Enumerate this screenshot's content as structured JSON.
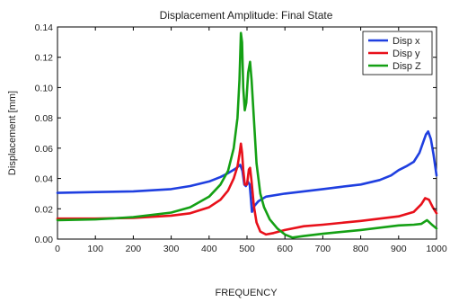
{
  "chart_data": {
    "type": "line",
    "title": "Displacement Amplitude:  Final State",
    "xlabel": "FREQUENCY",
    "ylabel": "Displacement [mm]",
    "xlim": [
      0,
      1000
    ],
    "ylim": [
      0,
      0.14
    ],
    "xticks": [
      0,
      100,
      200,
      300,
      400,
      500,
      600,
      700,
      800,
      900,
      1000
    ],
    "yticks": [
      0.0,
      0.02,
      0.04,
      0.06,
      0.08,
      0.1,
      0.12,
      0.14
    ],
    "grid": false,
    "legend_position": "top-right",
    "series": [
      {
        "name": "Disp x",
        "color": "#1f3fe0",
        "x": [
          0,
          100,
          200,
          300,
          350,
          400,
          430,
          450,
          470,
          482,
          488,
          493,
          497,
          502,
          507,
          513,
          520,
          530,
          550,
          600,
          650,
          700,
          750,
          800,
          850,
          880,
          900,
          920,
          940,
          955,
          965,
          972,
          978,
          985,
          992,
          1000
        ],
        "y": [
          0.0305,
          0.031,
          0.0315,
          0.033,
          0.035,
          0.038,
          0.041,
          0.0435,
          0.0465,
          0.049,
          0.045,
          0.036,
          0.035,
          0.038,
          0.036,
          0.018,
          0.022,
          0.025,
          0.028,
          0.03,
          0.0315,
          0.033,
          0.0345,
          0.036,
          0.039,
          0.042,
          0.0455,
          0.048,
          0.051,
          0.057,
          0.064,
          0.069,
          0.071,
          0.066,
          0.056,
          0.042
        ]
      },
      {
        "name": "Disp y",
        "color": "#e8101a",
        "x": [
          0,
          100,
          200,
          300,
          350,
          400,
          430,
          450,
          465,
          475,
          480,
          484,
          487,
          490,
          494,
          500,
          505,
          508,
          512,
          518,
          525,
          535,
          550,
          570,
          600,
          650,
          700,
          800,
          900,
          940,
          960,
          970,
          980,
          990,
          1000
        ],
        "y": [
          0.0135,
          0.0135,
          0.014,
          0.0155,
          0.017,
          0.021,
          0.026,
          0.032,
          0.04,
          0.048,
          0.056,
          0.063,
          0.057,
          0.046,
          0.036,
          0.036,
          0.046,
          0.047,
          0.038,
          0.022,
          0.011,
          0.005,
          0.003,
          0.004,
          0.006,
          0.0085,
          0.0095,
          0.012,
          0.015,
          0.018,
          0.023,
          0.027,
          0.026,
          0.021,
          0.017
        ]
      },
      {
        "name": "Disp Z",
        "color": "#14a014",
        "x": [
          0,
          100,
          200,
          300,
          350,
          400,
          430,
          450,
          465,
          475,
          480,
          484,
          487,
          490,
          494,
          498,
          503,
          508,
          512,
          518,
          525,
          535,
          545,
          560,
          580,
          600,
          620,
          650,
          700,
          800,
          900,
          940,
          960,
          975,
          990,
          1000
        ],
        "y": [
          0.0125,
          0.013,
          0.0145,
          0.0175,
          0.021,
          0.028,
          0.036,
          0.045,
          0.06,
          0.08,
          0.105,
          0.136,
          0.13,
          0.1,
          0.085,
          0.09,
          0.11,
          0.117,
          0.105,
          0.08,
          0.05,
          0.03,
          0.021,
          0.013,
          0.007,
          0.003,
          0.001,
          0.002,
          0.0035,
          0.006,
          0.009,
          0.0095,
          0.01,
          0.0125,
          0.009,
          0.007
        ]
      }
    ]
  }
}
